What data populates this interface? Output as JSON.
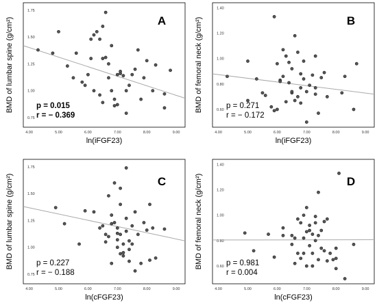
{
  "chart_data": [
    {
      "panel": "A",
      "type": "scatter",
      "xlabel": "ln(iFGF23)",
      "ylabel": "BMD of lumbar spine (g/cm²)",
      "xlim": [
        3.8,
        9.3
      ],
      "ylim": [
        0.66,
        1.82
      ],
      "xticks": [
        "4.00",
        "5.00",
        "6.00",
        "7.00",
        "8.00",
        "9.00"
      ],
      "yticks": [
        "0.75",
        "1.00",
        "1.25",
        "1.50",
        "1.75"
      ],
      "stats": {
        "p": "p = 0.015",
        "r": "r = − 0.369",
        "bold": true
      },
      "fit_line": {
        "x": [
          3.8,
          9.3
        ],
        "y": [
          1.42,
          0.93
        ]
      },
      "points": [
        [
          4.3,
          1.38
        ],
        [
          4.8,
          1.35
        ],
        [
          5.0,
          1.55
        ],
        [
          5.3,
          1.23
        ],
        [
          5.5,
          1.12
        ],
        [
          5.6,
          1.35
        ],
        [
          5.8,
          1.08
        ],
        [
          5.9,
          1.05
        ],
        [
          6.0,
          1.15
        ],
        [
          6.1,
          1.3
        ],
        [
          6.1,
          1.48
        ],
        [
          6.2,
          1.52
        ],
        [
          6.3,
          1.55
        ],
        [
          6.4,
          1.48
        ],
        [
          6.5,
          1.6
        ],
        [
          6.5,
          1.3
        ],
        [
          6.6,
          1.31
        ],
        [
          6.7,
          1.25
        ],
        [
          6.7,
          1.12
        ],
        [
          6.8,
          1.42
        ],
        [
          6.8,
          1.0
        ],
        [
          6.9,
          0.92
        ],
        [
          6.9,
          0.86
        ],
        [
          7.0,
          0.87
        ],
        [
          7.0,
          1.15
        ],
        [
          7.1,
          1.16
        ],
        [
          7.1,
          1.18
        ],
        [
          7.2,
          1.14
        ],
        [
          7.3,
          1.0
        ],
        [
          7.4,
          1.05
        ],
        [
          7.5,
          1.15
        ],
        [
          7.6,
          1.2
        ],
        [
          7.7,
          1.38
        ],
        [
          7.8,
          0.92
        ],
        [
          7.9,
          1.12
        ],
        [
          8.0,
          1.28
        ],
        [
          6.6,
          1.73
        ],
        [
          7.3,
          0.79
        ],
        [
          8.2,
          1.0
        ],
        [
          8.3,
          1.24
        ],
        [
          8.6,
          0.84
        ],
        [
          8.6,
          0.97
        ],
        [
          8.8,
          1.19
        ],
        [
          6.4,
          0.96
        ],
        [
          6.2,
          1.0
        ],
        [
          6.5,
          0.89
        ]
      ]
    },
    {
      "panel": "B",
      "type": "scatter",
      "xlabel": "ln(iFGF23)",
      "ylabel": "BMD of femoral neck (g/cm²)",
      "xlim": [
        3.8,
        9.3
      ],
      "ylim": [
        0.46,
        1.44
      ],
      "xticks": [
        "4.00",
        "5.00",
        "6.00",
        "7.00",
        "8.00",
        "9.00"
      ],
      "yticks": [
        "0.60",
        "0.80",
        "1.00",
        "1.20",
        "1.40"
      ],
      "stats": {
        "p": "p = 0.271",
        "r": "r = − 0.172",
        "bold": false
      },
      "fit_line": {
        "x": [
          3.8,
          9.3
        ],
        "y": [
          0.88,
          0.72
        ]
      },
      "points": [
        [
          4.3,
          0.86
        ],
        [
          5.0,
          0.98
        ],
        [
          5.0,
          0.67
        ],
        [
          5.5,
          0.73
        ],
        [
          5.6,
          0.71
        ],
        [
          5.8,
          0.62
        ],
        [
          5.9,
          0.59
        ],
        [
          6.0,
          0.96
        ],
        [
          6.1,
          0.83
        ],
        [
          6.2,
          0.86
        ],
        [
          6.2,
          1.07
        ],
        [
          6.3,
          1.02
        ],
        [
          6.3,
          0.66
        ],
        [
          6.4,
          0.81
        ],
        [
          6.4,
          0.97
        ],
        [
          6.5,
          0.73
        ],
        [
          6.5,
          0.92
        ],
        [
          6.6,
          1.18
        ],
        [
          6.6,
          0.67
        ],
        [
          6.7,
          0.7
        ],
        [
          6.7,
          1.05
        ],
        [
          6.8,
          0.77
        ],
        [
          6.8,
          0.65
        ],
        [
          6.9,
          0.84
        ],
        [
          6.9,
          0.98
        ],
        [
          7.0,
          0.74
        ],
        [
          7.0,
          0.5
        ],
        [
          7.1,
          0.79
        ],
        [
          7.2,
          0.87
        ],
        [
          7.3,
          0.77
        ],
        [
          7.4,
          0.57
        ],
        [
          7.5,
          0.85
        ],
        [
          7.6,
          0.89
        ],
        [
          7.7,
          0.7
        ],
        [
          5.9,
          1.33
        ],
        [
          7.3,
          0.72
        ],
        [
          8.2,
          0.73
        ],
        [
          8.3,
          0.86
        ],
        [
          8.6,
          0.6
        ],
        [
          8.7,
          0.96
        ],
        [
          6.1,
          0.82
        ],
        [
          5.3,
          0.84
        ],
        [
          6.0,
          0.6
        ],
        [
          6.8,
          0.88
        ],
        [
          7.3,
          1.02
        ],
        [
          6.5,
          0.74
        ]
      ]
    },
    {
      "panel": "C",
      "type": "scatter",
      "xlabel": "ln(cFGF23)",
      "ylabel": "BMD of lumbar spine (g/cm²)",
      "xlim": [
        3.8,
        9.3
      ],
      "ylim": [
        0.66,
        1.82
      ],
      "xticks": [
        "4.00",
        "5.00",
        "6.00",
        "7.00",
        "8.00",
        "9.00"
      ],
      "yticks": [
        "0.75",
        "1.00",
        "1.25",
        "1.50",
        "1.75"
      ],
      "stats": {
        "p": "p = 0.227",
        "r": "r = − 0.188",
        "bold": false
      },
      "fit_line": {
        "x": [
          3.8,
          9.3
        ],
        "y": [
          1.38,
          1.06
        ]
      },
      "points": [
        [
          4.9,
          1.37
        ],
        [
          5.2,
          1.22
        ],
        [
          5.7,
          1.03
        ],
        [
          5.9,
          1.34
        ],
        [
          6.2,
          1.33
        ],
        [
          6.4,
          1.18
        ],
        [
          6.5,
          1.2
        ],
        [
          6.6,
          1.12
        ],
        [
          6.7,
          1.48
        ],
        [
          6.7,
          1.1
        ],
        [
          6.8,
          1.3
        ],
        [
          6.8,
          1.22
        ],
        [
          6.8,
          0.85
        ],
        [
          6.9,
          1.6
        ],
        [
          6.9,
          1.23
        ],
        [
          7.0,
          1.18
        ],
        [
          7.0,
          1.07
        ],
        [
          7.0,
          1.0
        ],
        [
          7.1,
          1.55
        ],
        [
          7.1,
          1.4
        ],
        [
          7.1,
          1.12
        ],
        [
          7.2,
          0.95
        ],
        [
          7.2,
          1.03
        ],
        [
          7.3,
          1.74
        ],
        [
          7.3,
          1.27
        ],
        [
          7.3,
          1.15
        ],
        [
          7.4,
          0.87
        ],
        [
          7.4,
          1.06
        ],
        [
          7.5,
          1.03
        ],
        [
          7.5,
          1.2
        ],
        [
          7.6,
          1.33
        ],
        [
          7.6,
          0.78
        ],
        [
          7.7,
          1.12
        ],
        [
          7.8,
          0.85
        ],
        [
          7.9,
          1.23
        ],
        [
          8.0,
          1.16
        ],
        [
          8.1,
          1.4
        ],
        [
          8.1,
          0.88
        ],
        [
          8.2,
          1.18
        ],
        [
          8.3,
          0.9
        ],
        [
          8.6,
          1.17
        ],
        [
          7.1,
          0.94
        ],
        [
          7.2,
          0.92
        ],
        [
          6.6,
          1.05
        ],
        [
          7.0,
          1.13
        ],
        [
          7.4,
          0.98
        ]
      ]
    },
    {
      "panel": "D",
      "type": "scatter",
      "xlabel": "ln(cFGF23)",
      "ylabel": "BMD of femoral neck (g/cm²)",
      "xlim": [
        3.8,
        9.3
      ],
      "ylim": [
        0.46,
        1.44
      ],
      "xticks": [
        "4.00",
        "5.00",
        "6.00",
        "7.00",
        "8.00",
        "9.00"
      ],
      "yticks": [
        "0.60",
        "0.80",
        "1.00",
        "1.20",
        "1.40"
      ],
      "stats": {
        "p": "p = 0.981",
        "r": "r = 0.004",
        "bold": false
      },
      "fit_line": {
        "x": [
          3.8,
          9.3
        ],
        "y": [
          0.805,
          0.807
        ]
      },
      "points": [
        [
          4.9,
          0.86
        ],
        [
          5.2,
          0.72
        ],
        [
          5.7,
          0.85
        ],
        [
          5.9,
          0.67
        ],
        [
          6.2,
          0.84
        ],
        [
          6.5,
          0.77
        ],
        [
          6.6,
          0.62
        ],
        [
          6.7,
          0.7
        ],
        [
          6.7,
          0.97
        ],
        [
          6.8,
          0.94
        ],
        [
          6.8,
          0.66
        ],
        [
          6.9,
          1.0
        ],
        [
          6.9,
          0.82
        ],
        [
          7.0,
          0.6
        ],
        [
          7.0,
          1.06
        ],
        [
          7.0,
          0.87
        ],
        [
          7.1,
          0.76
        ],
        [
          7.1,
          0.92
        ],
        [
          7.2,
          0.85
        ],
        [
          7.2,
          0.7
        ],
        [
          7.3,
          0.99
        ],
        [
          7.3,
          0.94
        ],
        [
          7.3,
          0.8
        ],
        [
          7.4,
          1.18
        ],
        [
          7.4,
          0.65
        ],
        [
          7.5,
          0.88
        ],
        [
          7.5,
          0.74
        ],
        [
          7.6,
          0.72
        ],
        [
          7.7,
          0.97
        ],
        [
          7.7,
          0.64
        ],
        [
          7.8,
          0.7
        ],
        [
          7.9,
          0.65
        ],
        [
          8.0,
          0.58
        ],
        [
          8.0,
          0.74
        ],
        [
          8.1,
          1.33
        ],
        [
          8.3,
          0.5
        ],
        [
          8.6,
          0.77
        ],
        [
          7.1,
          0.88
        ],
        [
          6.6,
          0.82
        ],
        [
          7.4,
          0.84
        ],
        [
          6.9,
          0.7
        ],
        [
          7.2,
          0.6
        ],
        [
          8.0,
          0.66
        ],
        [
          6.2,
          0.9
        ],
        [
          6.5,
          0.84
        ],
        [
          7.6,
          0.95
        ]
      ]
    }
  ]
}
